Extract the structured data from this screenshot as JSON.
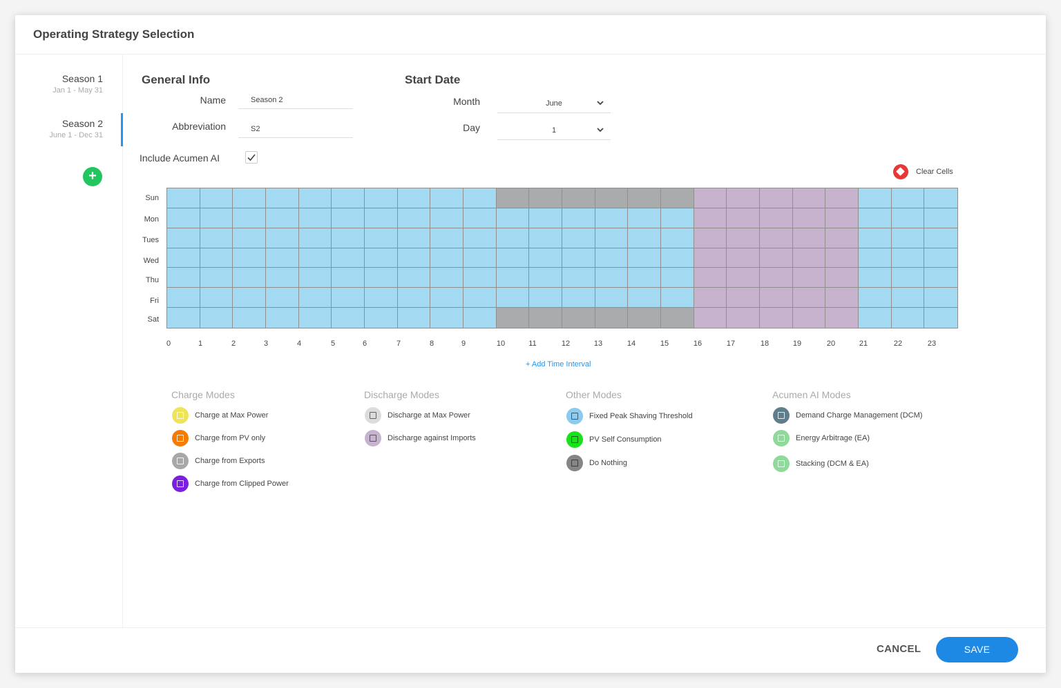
{
  "title": "Operating Strategy Selection",
  "seasons": [
    {
      "name": "Season 1",
      "range": "Jan 1 - May 31",
      "active": false
    },
    {
      "name": "Season 2",
      "range": "June 1 - Dec 31",
      "active": true
    }
  ],
  "add_season_label": "+",
  "general_info": {
    "title": "General Info",
    "name_label": "Name",
    "name_value": "Season 2",
    "abbr_label": "Abbreviation",
    "abbr_value": "S2",
    "include_label": "Include Acumen AI",
    "include_checked": true
  },
  "start_date": {
    "title": "Start Date",
    "month_label": "Month",
    "month_value": "June",
    "day_label": "Day",
    "day_value": "1"
  },
  "clear_cells_label": "Clear Cells",
  "schedule": {
    "days": [
      "Sun",
      "Mon",
      "Tues",
      "Wed",
      "Thu",
      "Fri",
      "Sat"
    ],
    "hours": [
      "0",
      "1",
      "2",
      "3",
      "4",
      "5",
      "6",
      "7",
      "8",
      "9",
      "10",
      "11",
      "12",
      "13",
      "14",
      "15",
      "16",
      "17",
      "18",
      "19",
      "20",
      "21",
      "22",
      "23"
    ],
    "grid": [
      [
        "B",
        "B",
        "B",
        "B",
        "B",
        "B",
        "B",
        "B",
        "B",
        "B",
        "G",
        "G",
        "G",
        "G",
        "G",
        "G",
        "P",
        "P",
        "P",
        "P",
        "P",
        "B",
        "B",
        "B"
      ],
      [
        "B",
        "B",
        "B",
        "B",
        "B",
        "B",
        "B",
        "B",
        "B",
        "B",
        "B",
        "B",
        "B",
        "B",
        "B",
        "B",
        "P",
        "P",
        "P",
        "P",
        "P",
        "B",
        "B",
        "B"
      ],
      [
        "B",
        "B",
        "B",
        "B",
        "B",
        "B",
        "B",
        "B",
        "B",
        "B",
        "B",
        "B",
        "B",
        "B",
        "B",
        "B",
        "P",
        "P",
        "P",
        "P",
        "P",
        "B",
        "B",
        "B"
      ],
      [
        "B",
        "B",
        "B",
        "B",
        "B",
        "B",
        "B",
        "B",
        "B",
        "B",
        "B",
        "B",
        "B",
        "B",
        "B",
        "B",
        "P",
        "P",
        "P",
        "P",
        "P",
        "B",
        "B",
        "B"
      ],
      [
        "B",
        "B",
        "B",
        "B",
        "B",
        "B",
        "B",
        "B",
        "B",
        "B",
        "B",
        "B",
        "B",
        "B",
        "B",
        "B",
        "P",
        "P",
        "P",
        "P",
        "P",
        "B",
        "B",
        "B"
      ],
      [
        "B",
        "B",
        "B",
        "B",
        "B",
        "B",
        "B",
        "B",
        "B",
        "B",
        "B",
        "B",
        "B",
        "B",
        "B",
        "B",
        "P",
        "P",
        "P",
        "P",
        "P",
        "B",
        "B",
        "B"
      ],
      [
        "B",
        "B",
        "B",
        "B",
        "B",
        "B",
        "B",
        "B",
        "B",
        "B",
        "G",
        "G",
        "G",
        "G",
        "G",
        "G",
        "P",
        "P",
        "P",
        "P",
        "P",
        "B",
        "B",
        "B"
      ]
    ],
    "cell_colors": {
      "B": "#a3daf2",
      "G": "#aaabad",
      "P": "#c8b3ce"
    }
  },
  "add_interval_label": "+ Add Time Interval",
  "legends": [
    {
      "title": "Charge Modes",
      "items": [
        {
          "label": "Charge at Max Power",
          "color": "#ede45a",
          "icon": "charge-max-power-icon",
          "light": true
        },
        {
          "label": "Charge from PV only",
          "color": "#f57c00",
          "icon": "charge-pv-only-icon",
          "light": true
        },
        {
          "label": "Charge from Exports",
          "color": "#a8a8a8",
          "icon": "charge-exports-icon",
          "light": true
        },
        {
          "label": "Charge from Clipped Power",
          "color": "#7b1fe0",
          "icon": "charge-clipped-power-icon",
          "light": true
        }
      ]
    },
    {
      "title": "Discharge Modes",
      "items": [
        {
          "label": "Discharge at Max Power",
          "color": "#dcdcdc",
          "icon": "discharge-max-power-icon",
          "light": false
        },
        {
          "label": "Discharge against Imports",
          "color": "#c8b3ce",
          "icon": "discharge-imports-icon",
          "light": false
        }
      ]
    },
    {
      "title": "Other Modes",
      "items": [
        {
          "label": "Fixed Peak Shaving Threshold",
          "color": "#8ccbf0",
          "icon": "peak-shaving-icon",
          "light": false
        },
        {
          "label": "PV Self Consumption",
          "color": "#1ae21a",
          "icon": "pv-self-consumption-icon",
          "light": false
        },
        {
          "label": "Do Nothing",
          "color": "#858585",
          "icon": "do-nothing-icon",
          "light": false
        }
      ]
    },
    {
      "title": "Acumen AI Modes",
      "items": [
        {
          "label": "Demand Charge Management (DCM)",
          "color": "#607d8b",
          "icon": "dcm-icon",
          "light": true
        },
        {
          "label": "Energy Arbitrage (EA)",
          "color": "#8fd99a",
          "icon": "energy-arbitrage-icon",
          "light": true
        },
        {
          "label": "Stacking (DCM & EA)",
          "color": "#8fd99a",
          "icon": "stacking-icon",
          "light": true
        }
      ]
    }
  ],
  "footer": {
    "cancel_label": "CANCEL",
    "save_label": "SAVE"
  }
}
